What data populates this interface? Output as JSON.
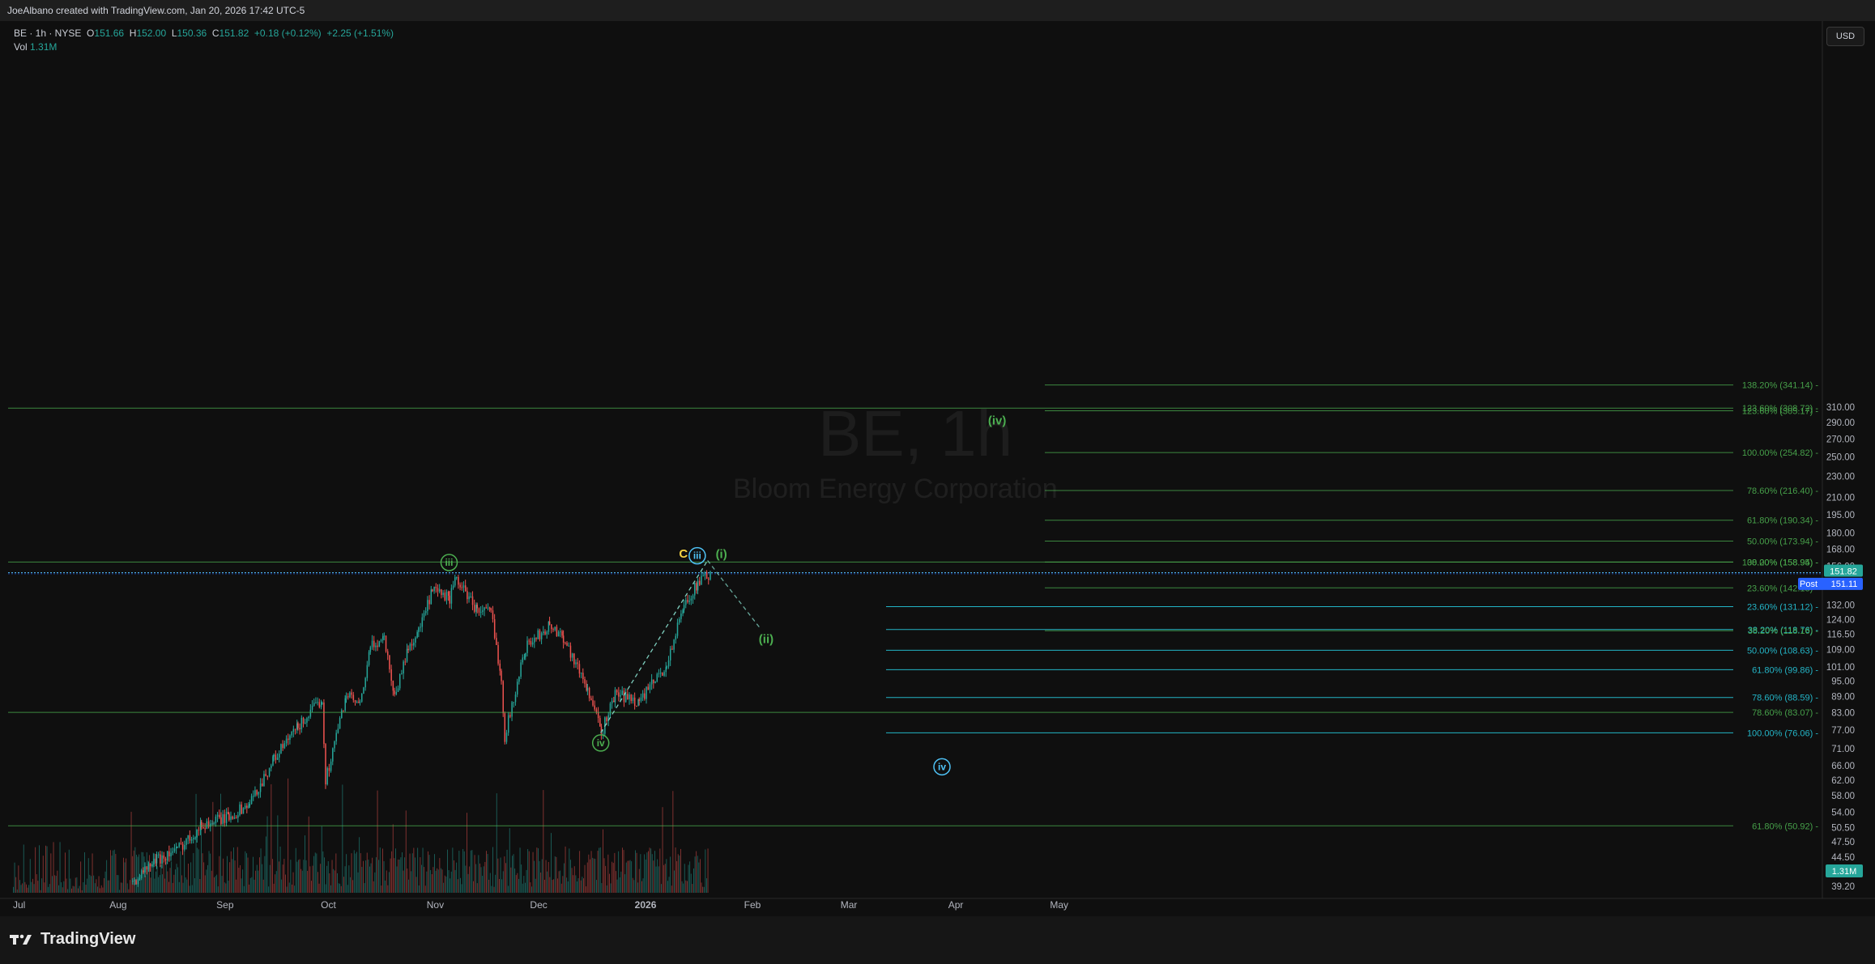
{
  "header": {
    "credit": "JoeAlbano created with TradingView.com, Jan 20, 2026 17:42 UTC-5"
  },
  "legend": {
    "symbol": "BE · 1h · NYSE",
    "o_label": "O",
    "o": "151.66",
    "h_label": "H",
    "h": "152.00",
    "l_label": "L",
    "l": "150.36",
    "c_label": "C",
    "c": "151.82",
    "chg": "+0.18 (+0.12%)",
    "post_chg": "+2.25 (+1.51%)",
    "vol_label": "Vol",
    "vol": "1.31M"
  },
  "currency_button": "USD",
  "watermark": {
    "ticker": "BE, 1h",
    "company": "Bloom Energy Corporation"
  },
  "branding": {
    "logo_text": "TradingView"
  },
  "colors": {
    "up": "#26a69a",
    "down": "#ef5350",
    "green_fib": "#4caf50",
    "cyan_fib": "#26c6da",
    "bg": "#0f0f0f"
  },
  "chart_data": {
    "type": "candlestick",
    "title": "BE, 1h",
    "price_scale": "log",
    "y_ticks": [
      "310.00",
      "290.00",
      "270.00",
      "250.00",
      "230.00",
      "210.00",
      "195.00",
      "180.00",
      "168.00",
      "156.00",
      "144.00",
      "132.00",
      "124.00",
      "116.50",
      "109.00",
      "101.00",
      "95.00",
      "89.00",
      "83.00",
      "77.00",
      "71.00",
      "66.00",
      "62.00",
      "58.00",
      "54.00",
      "50.50",
      "47.50",
      "44.50",
      "41.70",
      "39.20"
    ],
    "x_ticks": [
      "Jul",
      "Aug",
      "Sep",
      "Oct",
      "Nov",
      "Dec",
      "2026",
      "Feb",
      "Mar",
      "Apr",
      "May"
    ],
    "last_price": "151.82",
    "post_label": "Post",
    "post_price": "151.11",
    "volume_badge": "1.31M",
    "price_path": [
      [
        "2025-08-05",
        40
      ],
      [
        "2025-08-12",
        44
      ],
      [
        "2025-08-18",
        46
      ],
      [
        "2025-08-25",
        51
      ],
      [
        "2025-09-02",
        53
      ],
      [
        "2025-09-08",
        56
      ],
      [
        "2025-09-15",
        68
      ],
      [
        "2025-09-22",
        78
      ],
      [
        "2025-09-29",
        88
      ],
      [
        "2025-09-30",
        62
      ],
      [
        "2025-10-06",
        90
      ],
      [
        "2025-10-10",
        85
      ],
      [
        "2025-10-13",
        110
      ],
      [
        "2025-10-17",
        115
      ],
      [
        "2025-10-20",
        89
      ],
      [
        "2025-10-24",
        110
      ],
      [
        "2025-10-27",
        118
      ],
      [
        "2025-10-31",
        140
      ],
      [
        "2025-11-05",
        136
      ],
      [
        "2025-11-07",
        148
      ],
      [
        "2025-11-13",
        129
      ],
      [
        "2025-11-17",
        128
      ],
      [
        "2025-11-20",
        96
      ],
      [
        "2025-11-21",
        75
      ],
      [
        "2025-11-27",
        110
      ],
      [
        "2025-12-04",
        121
      ],
      [
        "2025-12-08",
        115
      ],
      [
        "2025-12-15",
        92
      ],
      [
        "2025-12-19",
        76
      ],
      [
        "2025-12-23",
        90
      ],
      [
        "2025-12-30",
        87
      ],
      [
        "2026-01-07",
        102
      ],
      [
        "2026-01-12",
        132
      ],
      [
        "2026-01-16",
        145
      ],
      [
        "2026-01-20",
        151.82
      ]
    ],
    "fib_levels": [
      {
        "label": "138.20% (341.14)",
        "value": 341.14,
        "group": "green"
      },
      {
        "label": "123.60% (308.72)",
        "value": 308.72,
        "group": "green"
      },
      {
        "label": "123.60% (305.17)",
        "value": 305.17,
        "group": "green"
      },
      {
        "label": "100.00% (254.82)",
        "value": 254.82,
        "group": "green"
      },
      {
        "label": "78.60% (216.40)",
        "value": 216.4,
        "group": "green"
      },
      {
        "label": "61.80% (190.34)",
        "value": 190.34,
        "group": "green"
      },
      {
        "label": "50.00% (173.94)",
        "value": 173.94,
        "group": "green"
      },
      {
        "label": "38.20% (158.95)",
        "value": 158.95,
        "group": "green"
      },
      {
        "label": "100.00% (158.94)",
        "value": 158.94,
        "group": "green"
      },
      {
        "label": "23.60% (142.18)",
        "value": 142.18,
        "group": "green"
      },
      {
        "label": "23.60% (131.12)",
        "value": 131.12,
        "group": "cyan"
      },
      {
        "label": "38.20% (118.76)",
        "value": 118.76,
        "group": "cyan"
      },
      {
        "label": "38.20% (118.16)",
        "value": 118.16,
        "group": "green"
      },
      {
        "label": "50.00% (108.63)",
        "value": 108.63,
        "group": "cyan"
      },
      {
        "label": "61.80% (99.86)",
        "value": 99.86,
        "group": "cyan"
      },
      {
        "label": "78.60% (88.59)",
        "value": 88.59,
        "group": "cyan"
      },
      {
        "label": "78.60% (83.07)",
        "value": 83.07,
        "group": "green"
      },
      {
        "label": "100.00% (76.06)",
        "value": 76.06,
        "group": "cyan"
      },
      {
        "label": "61.80% (50.92)",
        "value": 50.92,
        "group": "green"
      }
    ],
    "wave_labels": [
      {
        "text": "iii",
        "style": "green-circle",
        "date": "2025-11-05",
        "price": 158.6
      },
      {
        "text": "iv",
        "style": "green-circle",
        "date": "2025-12-19",
        "price": 72.8
      },
      {
        "text": "C",
        "style": "yellow",
        "date": "2026-01-12",
        "price": 164.9
      },
      {
        "text": "iii",
        "style": "cyan-circle",
        "date": "2026-01-16",
        "price": 163.3
      },
      {
        "text": "(i)",
        "style": "green",
        "date": "2026-01-23",
        "price": 164.6
      },
      {
        "text": "(ii)",
        "style": "green",
        "date": "2026-02-05",
        "price": 114.0
      },
      {
        "text": "(iv)",
        "style": "green",
        "date": "2026-04-13",
        "price": 292.5
      },
      {
        "text": "iv",
        "style": "cyan-circle",
        "date": "2026-03-28",
        "price": 65.7
      }
    ]
  }
}
